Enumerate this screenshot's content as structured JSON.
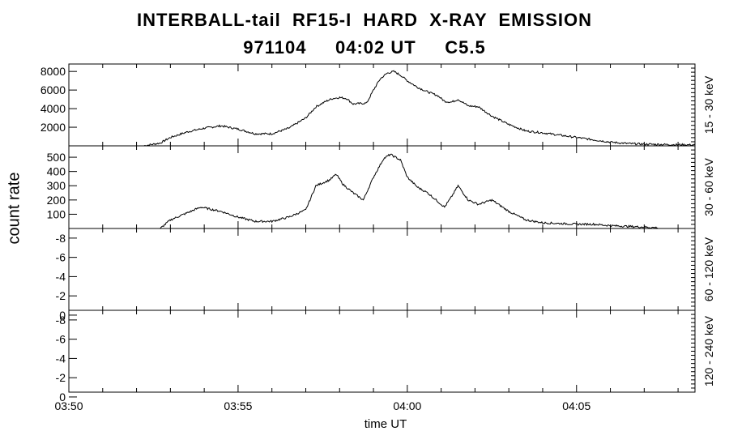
{
  "title_line1": "INTERBALL-tail  RF15-I  HARD  X-RAY  EMISSION",
  "title_line2": "971104     04:02 UT     C5.5",
  "chart_data": {
    "type": "line",
    "ylabel": "count rate",
    "xlabel": "time UT",
    "x_range_minutes_after_0350": [
      0,
      18.5
    ],
    "x_ticks": [
      {
        "minute": 0,
        "label": "03:50"
      },
      {
        "minute": 5,
        "label": "03:55"
      },
      {
        "minute": 10,
        "label": "04:00"
      },
      {
        "minute": 15,
        "label": "04:05"
      }
    ],
    "panels": [
      {
        "name": "15 - 30 keV",
        "ylim": [
          0,
          8800
        ],
        "yticks": [
          2000,
          4000,
          6000,
          8000
        ],
        "series": {
          "x": [
            "03:50:00",
            "03:51:00",
            "03:52:12",
            "03:52:42",
            "03:53:00",
            "03:53:30",
            "03:54:00",
            "03:54:30",
            "03:55:00",
            "03:55:30",
            "03:56:00",
            "03:56:30",
            "03:57:00",
            "03:57:18",
            "03:57:36",
            "03:57:48",
            "03:58:00",
            "03:58:12",
            "03:58:24",
            "03:58:48",
            "03:59:00",
            "03:59:12",
            "03:59:24",
            "03:59:36",
            "03:59:48",
            "04:00:00",
            "04:00:18",
            "04:00:36",
            "04:00:54",
            "04:01:06",
            "04:01:18",
            "04:01:30",
            "04:01:48",
            "04:02:06",
            "04:02:30",
            "04:03:00",
            "04:03:30",
            "04:04:00",
            "04:04:30",
            "04:05:00",
            "04:05:30",
            "04:06:00",
            "04:06:30",
            "04:07:00",
            "04:07:30",
            "04:08:00",
            "04:08:30"
          ],
          "y": [
            0,
            0,
            0,
            300,
            900,
            1500,
            1900,
            2150,
            1800,
            1300,
            1300,
            1900,
            3000,
            4200,
            4800,
            5100,
            5200,
            5100,
            4500,
            4600,
            6000,
            7200,
            7800,
            8000,
            7600,
            7000,
            6300,
            5800,
            5400,
            4800,
            4700,
            5000,
            4300,
            4200,
            3200,
            2300,
            1600,
            1400,
            1150,
            900,
            650,
            400,
            250,
            180,
            150,
            120,
            100
          ]
        }
      },
      {
        "name": "30 - 60 keV",
        "ylim": [
          0,
          580
        ],
        "yticks": [
          100,
          200,
          300,
          400,
          500
        ],
        "series": {
          "x": [
            "03:52:42",
            "03:53:00",
            "03:53:30",
            "03:53:54",
            "03:54:30",
            "03:55:00",
            "03:55:30",
            "03:56:00",
            "03:56:30",
            "03:57:00",
            "03:57:18",
            "03:57:42",
            "03:57:54",
            "03:58:06",
            "03:58:24",
            "03:58:42",
            "03:59:00",
            "03:59:18",
            "03:59:30",
            "03:59:48",
            "04:00:00",
            "04:00:18",
            "04:00:36",
            "04:00:54",
            "04:01:06",
            "04:01:18",
            "04:01:30",
            "04:01:48",
            "04:02:06",
            "04:02:30",
            "04:03:00",
            "04:03:30",
            "04:04:00",
            "04:05:00",
            "04:05:30",
            "04:06:00",
            "04:06:30",
            "04:07:00",
            "04:07:24"
          ],
          "y": [
            0,
            60,
            110,
            150,
            120,
            80,
            50,
            50,
            80,
            130,
            300,
            340,
            380,
            310,
            250,
            200,
            360,
            490,
            520,
            480,
            360,
            290,
            250,
            190,
            150,
            220,
            300,
            200,
            170,
            200,
            120,
            60,
            40,
            30,
            30,
            20,
            15,
            10,
            5
          ]
        }
      },
      {
        "name": "60 - 120 keV",
        "ylim": [
          -0.5,
          -9
        ],
        "yticks": [
          0,
          -2,
          -4,
          -6,
          -8
        ],
        "series": {
          "x": [],
          "y": []
        }
      },
      {
        "name": "120 - 240 keV",
        "ylim": [
          -0.5,
          -9
        ],
        "yticks": [
          0,
          -2,
          -4,
          -6,
          -8
        ],
        "series": {
          "x": [],
          "y": []
        }
      }
    ]
  }
}
